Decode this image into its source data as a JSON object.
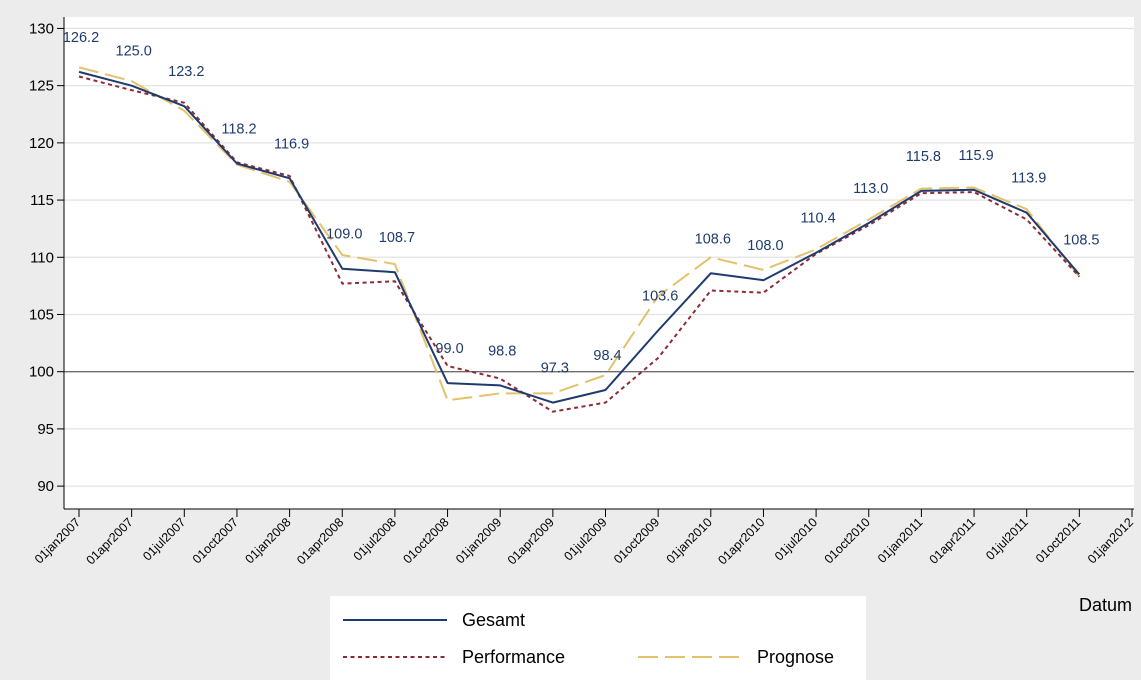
{
  "chart_data": {
    "type": "line",
    "x": [
      "01jan2007",
      "01apr2007",
      "01jul2007",
      "01oct2007",
      "01jan2008",
      "01apr2008",
      "01jul2008",
      "01oct2008",
      "01jan2009",
      "01apr2009",
      "01jul2009",
      "01oct2009",
      "01jan2010",
      "01apr2010",
      "01jul2010",
      "01oct2010",
      "01jan2011",
      "01apr2011",
      "01jul2011",
      "01oct2011"
    ],
    "x_ticks": [
      "01jan2007",
      "01apr2007",
      "01jul2007",
      "01oct2007",
      "01jan2008",
      "01apr2008",
      "01jul2008",
      "01oct2008",
      "01jan2009",
      "01apr2009",
      "01jul2009",
      "01oct2009",
      "01jan2010",
      "01apr2010",
      "01jul2010",
      "01oct2010",
      "01jan2011",
      "01apr2011",
      "01jul2011",
      "01oct2011",
      "01jan2012"
    ],
    "xlabel": "Datum",
    "ylabel": "",
    "ylim": [
      88,
      131
    ],
    "y_ticks": [
      90,
      95,
      100,
      105,
      110,
      115,
      120,
      125,
      130
    ],
    "reference_line": 100,
    "grid": true,
    "legend_position": "bottom",
    "series": [
      {
        "name": "Gesamt",
        "color": "#1f3b6e",
        "dash": "solid",
        "values": [
          126.2,
          125.0,
          123.2,
          118.2,
          116.9,
          109.0,
          108.7,
          99.0,
          98.8,
          97.3,
          98.4,
          103.6,
          108.6,
          108.0,
          110.4,
          113.0,
          115.8,
          115.9,
          113.9,
          108.5
        ],
        "labels": [
          "126.2",
          "125.0",
          "123.2",
          "118.2",
          "116.9",
          "109.0",
          "108.7",
          "99.0",
          "98.8",
          "97.3",
          "98.4",
          "103.6",
          "108.6",
          "108.0",
          "110.4",
          "113.0",
          "115.8",
          "115.9",
          "113.9",
          "108.5"
        ]
      },
      {
        "name": "Performance",
        "color": "#8c2b35",
        "dash": "short",
        "values": [
          125.8,
          124.6,
          123.5,
          118.3,
          117.1,
          107.7,
          107.9,
          100.5,
          99.4,
          96.5,
          97.3,
          101.2,
          107.1,
          106.9,
          110.3,
          112.8,
          115.6,
          115.7,
          113.3,
          108.3
        ]
      },
      {
        "name": "Prognose",
        "color": "#e3c26b",
        "dash": "long",
        "values": [
          126.6,
          125.4,
          122.8,
          118.1,
          116.6,
          110.2,
          109.4,
          97.5,
          98.1,
          98.1,
          99.7,
          106.6,
          110.0,
          108.9,
          110.7,
          113.3,
          116.0,
          116.1,
          114.2,
          108.3
        ]
      }
    ]
  }
}
